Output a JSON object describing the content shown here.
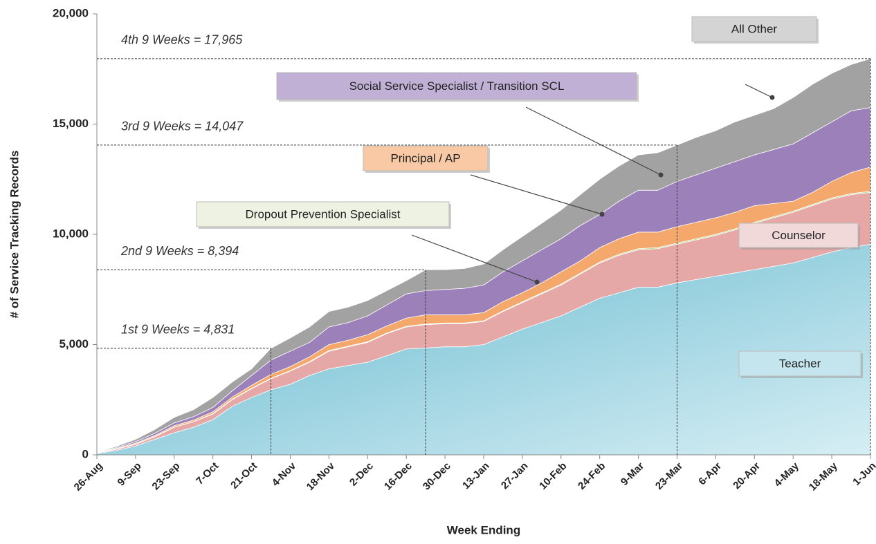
{
  "chart_data": {
    "type": "stacked_area",
    "x_label": "Week Ending",
    "y_label": "# of Service Tracking Records",
    "categories": [
      "26-Aug",
      null,
      "9-Sep",
      null,
      "23-Sep",
      null,
      "7-Oct",
      null,
      "21-Oct",
      null,
      "4-Nov",
      null,
      "18-Nov",
      null,
      "2-Dec",
      null,
      "16-Dec",
      null,
      "30-Dec",
      null,
      "13-Jan",
      null,
      "27-Jan",
      null,
      "10-Feb",
      null,
      "24-Feb",
      null,
      "9-Mar",
      null,
      "23-Mar",
      null,
      "6-Apr",
      null,
      "20-Apr",
      null,
      "4-May",
      null,
      "18-May",
      null,
      "1-Jun"
    ],
    "ylim": [
      0,
      20000
    ],
    "yticks": [
      0,
      {
        "value": 5000,
        "label": "5,000"
      },
      {
        "value": 10000,
        "label": "10,000"
      },
      {
        "value": 15000,
        "label": "15,000"
      },
      {
        "value": 20000,
        "label": "20,000"
      }
    ],
    "series": [
      {
        "name": "Teacher",
        "color": "#6cbdd2",
        "values": [
          50,
          200,
          400,
          700,
          1000,
          1250,
          1600,
          2200,
          2600,
          2950,
          3200,
          3600,
          3900,
          4050,
          4200,
          4500,
          4800,
          4850,
          4900,
          4900,
          5000,
          5350,
          5700,
          6000,
          6300,
          6700,
          7100,
          7350,
          7600,
          7600,
          7800,
          7950,
          8100,
          8250,
          8400,
          8550,
          8700,
          8950,
          9200,
          9400,
          9550
        ]
      },
      {
        "name": "Counselor",
        "color": "#e6a8a6",
        "values": [
          30,
          50,
          80,
          120,
          250,
          250,
          250,
          300,
          400,
          500,
          600,
          600,
          800,
          850,
          900,
          1000,
          1000,
          1050,
          1050,
          1050,
          1050,
          1150,
          1200,
          1300,
          1400,
          1500,
          1600,
          1700,
          1700,
          1750,
          1750,
          1800,
          1850,
          1950,
          2100,
          2200,
          2300,
          2350,
          2400,
          2400,
          2350
        ]
      },
      {
        "name": "Dropout Prevention Specialist",
        "color": "#b6d48a",
        "values": [
          5,
          10,
          10,
          10,
          10,
          10,
          20,
          20,
          20,
          20,
          20,
          30,
          30,
          30,
          30,
          30,
          30,
          30,
          30,
          30,
          30,
          30,
          40,
          40,
          40,
          40,
          40,
          50,
          50,
          50,
          50,
          50,
          50,
          50,
          50,
          50,
          50,
          50,
          50,
          50,
          50
        ]
      },
      {
        "name": "Principal / AP",
        "color": "#f4a86c",
        "values": [
          10,
          30,
          40,
          50,
          60,
          70,
          80,
          100,
          130,
          180,
          180,
          220,
          270,
          270,
          320,
          320,
          370,
          420,
          370,
          370,
          370,
          420,
          410,
          460,
          560,
          560,
          660,
          700,
          750,
          700,
          750,
          750,
          750,
          750,
          750,
          600,
          450,
          550,
          750,
          950,
          1100
        ]
      },
      {
        "name": "Social Service Specialist / Transition SCL",
        "color": "#9c80b9",
        "values": [
          15,
          40,
          70,
          100,
          130,
          150,
          200,
          280,
          450,
          650,
          700,
          650,
          800,
          800,
          850,
          950,
          1100,
          1100,
          1150,
          1200,
          1250,
          1350,
          1450,
          1500,
          1500,
          1600,
          1500,
          1700,
          1900,
          1900,
          2050,
          2150,
          2250,
          2300,
          2300,
          2450,
          2600,
          2700,
          2700,
          2800,
          2700
        ]
      },
      {
        "name": "All Other",
        "color": "#a2a2a2",
        "values": [
          10,
          50,
          100,
          170,
          250,
          320,
          450,
          400,
          300,
          531,
          600,
          700,
          700,
          700,
          700,
          650,
          600,
          944,
          900,
          900,
          950,
          1000,
          1100,
          1200,
          1300,
          1400,
          1600,
          1600,
          1600,
          1700,
          1647,
          1700,
          1700,
          1800,
          1800,
          1850,
          2100,
          2200,
          2200,
          2100,
          2215
        ]
      }
    ],
    "annotations": [
      {
        "text": "1st 9 Weeks = 4,831",
        "value": 4831
      },
      {
        "text": "2nd 9 Weeks = 8,394",
        "value": 8394
      },
      {
        "text": "3rd 9 Weeks = 14,047",
        "value": 14047
      },
      {
        "text": "4th 9 Weeks = 17,965",
        "value": 17965
      }
    ]
  }
}
